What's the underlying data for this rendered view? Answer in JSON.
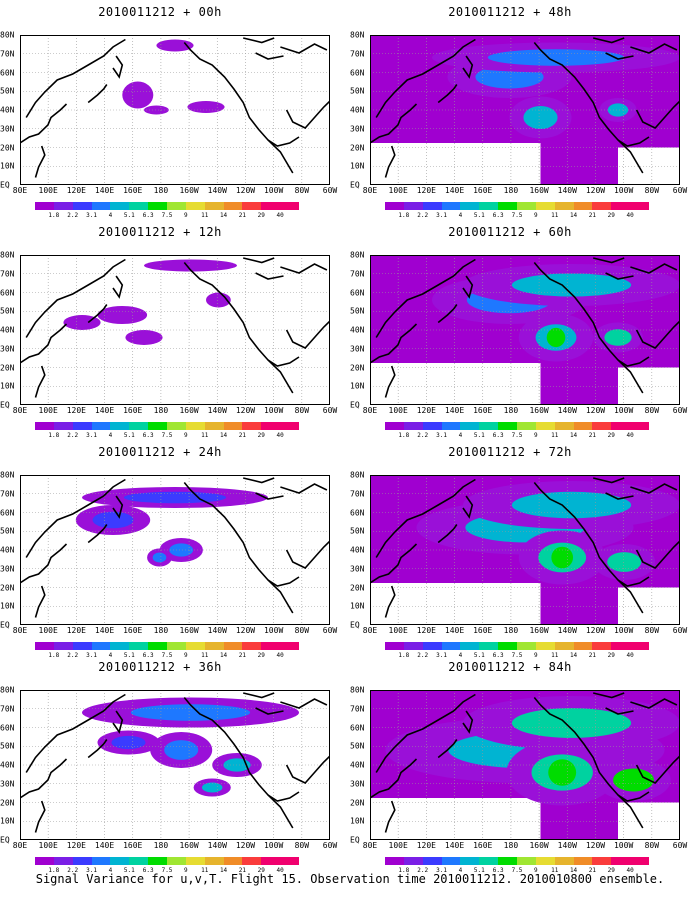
{
  "panels": [
    {
      "title": "2010011212 + 00h",
      "intensity": 0
    },
    {
      "title": "2010011212 + 48h",
      "intensity": 4
    },
    {
      "title": "2010011212 + 12h",
      "intensity": 1
    },
    {
      "title": "2010011212 + 60h",
      "intensity": 5
    },
    {
      "title": "2010011212 + 24h",
      "intensity": 2
    },
    {
      "title": "2010011212 + 72h",
      "intensity": 6
    },
    {
      "title": "2010011212 + 36h",
      "intensity": 3
    },
    {
      "title": "2010011212 + 84h",
      "intensity": 7
    }
  ],
  "lon_labels": [
    "80E",
    "100E",
    "120E",
    "140E",
    "160E",
    "180",
    "160W",
    "140W",
    "120W",
    "100W",
    "80W",
    "60W"
  ],
  "lat_labels": [
    "80N",
    "70N",
    "60N",
    "50N",
    "40N",
    "30N",
    "20N",
    "10N",
    "EQ"
  ],
  "colorbar": {
    "labels": [
      "1.8",
      "2.2",
      "3.1",
      "4",
      "5.1",
      "6.3",
      "7.5",
      "9",
      "11",
      "14",
      "21",
      "29",
      "40"
    ],
    "colors": [
      "#a000d0",
      "#7a1fe6",
      "#3b3bff",
      "#1e78ff",
      "#00b4d2",
      "#00d2a0",
      "#00dc00",
      "#a0e632",
      "#e6dc32",
      "#e6b42d",
      "#f08c28",
      "#fa3c3c",
      "#f0006e"
    ]
  },
  "caption": "Signal Variance for u,v,T. Flight 15. Observation time 2010011212. 2010010800 ensemble."
}
